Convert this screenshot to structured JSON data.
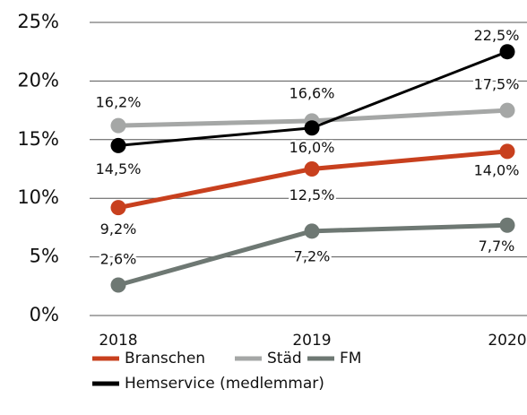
{
  "chart_data": {
    "type": "line",
    "categories": [
      "2018",
      "2019",
      "2020"
    ],
    "series": [
      {
        "name": "Branschen",
        "color": "#c8401e",
        "values": [
          9.2,
          12.5,
          14.0
        ],
        "value_labels": [
          "9,2%",
          "12,5%",
          "14,0%"
        ]
      },
      {
        "name": "Städ",
        "color": "#a5a7a6",
        "values": [
          16.2,
          16.6,
          17.5
        ],
        "value_labels": [
          "16,2%",
          "16,6%",
          "17,5%"
        ]
      },
      {
        "name": "FM",
        "color": "#6e7873",
        "values": [
          2.6,
          7.2,
          7.7
        ],
        "value_labels": [
          "2,6%",
          "7,2%",
          "7,7%"
        ]
      },
      {
        "name": "Hemservice (medlemmar)",
        "color": "#000000",
        "values": [
          14.5,
          16.0,
          22.5
        ],
        "value_labels": [
          "14,5%",
          "16,0%",
          "22,5%"
        ]
      }
    ],
    "ylim": [
      0,
      25
    ],
    "yticks": [
      {
        "value": 0,
        "label": "0%"
      },
      {
        "value": 5,
        "label": "5%"
      },
      {
        "value": 10,
        "label": "10%"
      },
      {
        "value": 15,
        "label": "15%"
      },
      {
        "value": 20,
        "label": "20%"
      },
      {
        "value": 25,
        "label": "25%"
      }
    ],
    "grid": true
  }
}
